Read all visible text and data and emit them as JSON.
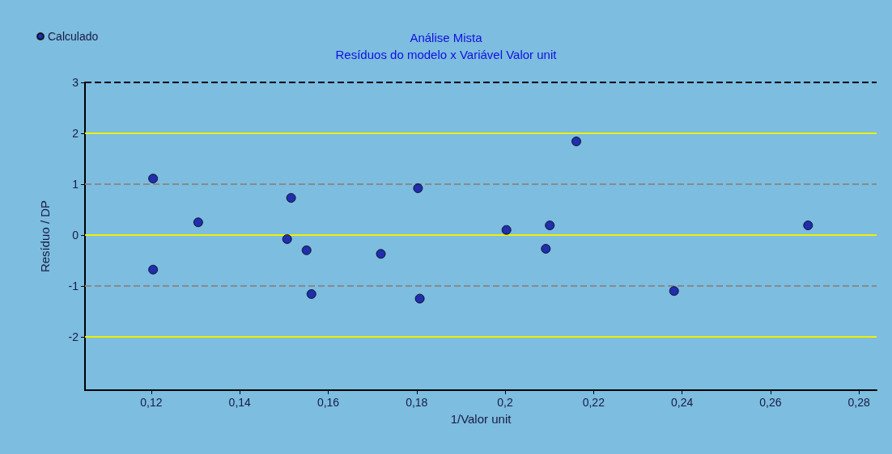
{
  "chart_data": {
    "type": "scatter",
    "title": "Análise Mista",
    "subtitle": "Resíduos do modelo x Variável Valor unit",
    "xlabel": "1/Valor unit",
    "ylabel": "Resíduo / DP",
    "series": [
      {
        "name": "Calculado",
        "color": "#0a0aa0",
        "x": [
          0.1204,
          0.1204,
          0.1306,
          0.1516,
          0.1507,
          0.1551,
          0.1562,
          0.1719,
          0.1803,
          0.1807,
          0.2003,
          0.2092,
          0.2101,
          0.2161,
          0.2382,
          0.2685
        ],
        "values": [
          1.11,
          -0.68,
          0.25,
          0.73,
          -0.08,
          -0.3,
          -1.16,
          -0.37,
          0.92,
          -1.25,
          0.1,
          -0.27,
          0.19,
          1.84,
          -1.1,
          0.19
        ]
      }
    ],
    "xlim": [
      0.105,
      0.284
    ],
    "xticks": [
      {
        "value": 0.12,
        "label": "0,12"
      },
      {
        "value": 0.14,
        "label": "0,14"
      },
      {
        "value": 0.16,
        "label": "0,16"
      },
      {
        "value": 0.18,
        "label": "0,18"
      },
      {
        "value": 0.2,
        "label": "0,2"
      },
      {
        "value": 0.22,
        "label": "0,22"
      },
      {
        "value": 0.24,
        "label": "0,24"
      },
      {
        "value": 0.26,
        "label": "0,26"
      },
      {
        "value": 0.28,
        "label": "0,28"
      }
    ],
    "ylim": [
      -3.05,
      3
    ],
    "yticks": [
      -2,
      -1,
      0,
      1,
      2,
      3
    ],
    "ref_lines": [
      {
        "axis": "y",
        "value": 2,
        "color": "#f0f000",
        "line_style": "solid"
      },
      {
        "axis": "y",
        "value": 0,
        "color": "#f0f000",
        "line_style": "solid"
      },
      {
        "axis": "y",
        "value": -2,
        "color": "#f0f000",
        "line_style": "solid"
      },
      {
        "axis": "y",
        "value": 1,
        "color": "#8a8a8a",
        "line_style": "dashed"
      },
      {
        "axis": "y",
        "value": -1,
        "color": "#8a8a8a",
        "line_style": "dashed"
      },
      {
        "axis": "y",
        "value": 3,
        "color": "#000000",
        "line_style": "dashed"
      }
    ],
    "grid": false,
    "legend": "top left",
    "marker": "circle"
  }
}
